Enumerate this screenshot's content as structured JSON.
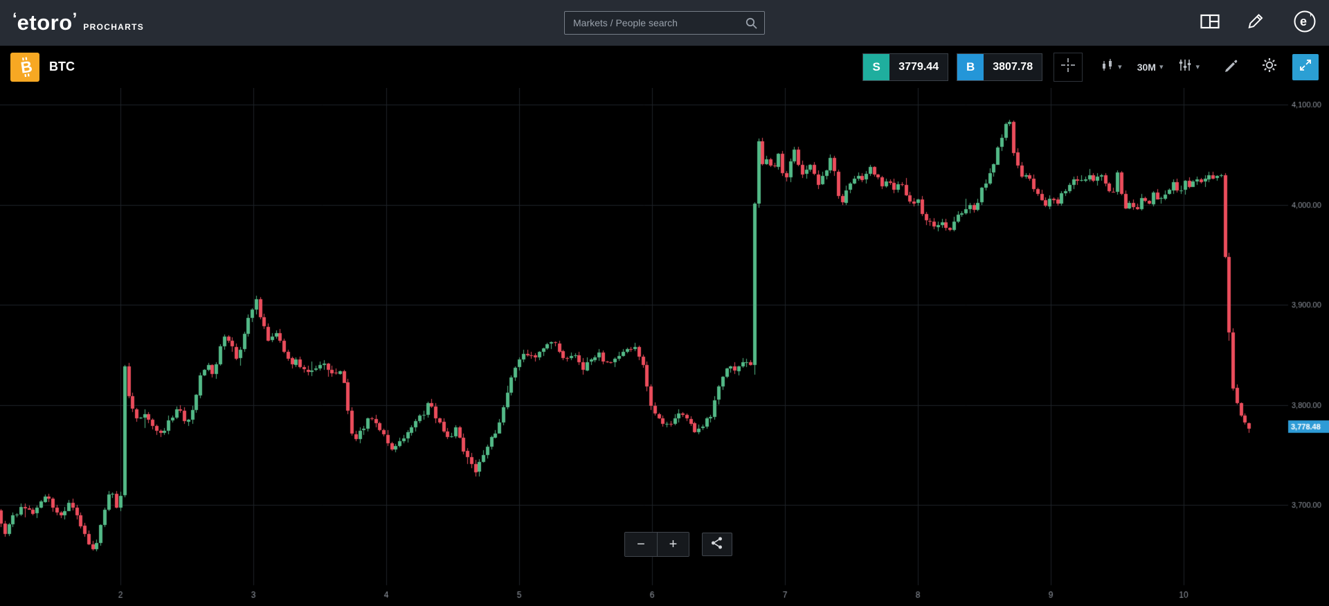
{
  "topbar": {
    "logo_text": "etoro",
    "logo_suffix": "PROCHARTS",
    "search_placeholder": "Markets / People search"
  },
  "toolbar": {
    "instrument": "BTC",
    "sell_label": "S",
    "sell_price": "3779.44",
    "buy_label": "B",
    "buy_price": "3807.78",
    "timeframe": "30M"
  },
  "icons": {
    "caret_down": "▾",
    "btc_glyph": "B",
    "bull_glyph": "e",
    "horn_left": "‘",
    "horn_right": "’"
  },
  "zoom_controls": {
    "minus": "−",
    "plus": "+"
  },
  "colors": {
    "topbar_bg": "#272c34",
    "sell_badge": "#1fae9e",
    "buy_badge": "#2496d8",
    "btc_orange": "#f7a823",
    "active_tool": "#2b9fd4",
    "price_tag": "#2e9bd6"
  },
  "chart_data": {
    "type": "candlestick",
    "symbol": "BTC",
    "timeframe": "30M",
    "title": "BTC 30-minute candlestick chart",
    "x_ticks": [
      "2",
      "3",
      "4",
      "5",
      "6",
      "7",
      "8",
      "9",
      "10"
    ],
    "x_tick_values": [
      2,
      3,
      4,
      5,
      6,
      7,
      8,
      9,
      10
    ],
    "y_ticks": [
      "4,100.00",
      "4,000.00",
      "3,900.00",
      "3,800.00",
      "3,700.00"
    ],
    "y_tick_values": [
      4100,
      4000,
      3900,
      3800,
      3700
    ],
    "y_range": [
      3640,
      4115
    ],
    "grid": true,
    "legend": false,
    "t_start": 1.1,
    "t_end": 10.52,
    "candle_step": 0.03,
    "last_price": 3778.48,
    "last_price_label": "3,778.48",
    "up_color": "#53b987",
    "down_color": "#eb4d5c",
    "tag_color": "#2e9bd6",
    "anchors": [
      [
        1.1,
        3695
      ],
      [
        1.16,
        3672
      ],
      [
        1.22,
        3688
      ],
      [
        1.3,
        3700
      ],
      [
        1.38,
        3692
      ],
      [
        1.45,
        3712
      ],
      [
        1.52,
        3700
      ],
      [
        1.58,
        3688
      ],
      [
        1.64,
        3702
      ],
      [
        1.7,
        3692
      ],
      [
        1.76,
        3672
      ],
      [
        1.83,
        3652
      ],
      [
        1.9,
        3688
      ],
      [
        1.96,
        3718
      ],
      [
        2.0,
        3700
      ],
      [
        2.03,
        3712
      ],
      [
        2.06,
        3840
      ],
      [
        2.1,
        3800
      ],
      [
        2.15,
        3786
      ],
      [
        2.22,
        3792
      ],
      [
        2.28,
        3778
      ],
      [
        2.34,
        3768
      ],
      [
        2.4,
        3786
      ],
      [
        2.47,
        3796
      ],
      [
        2.53,
        3780
      ],
      [
        2.58,
        3798
      ],
      [
        2.62,
        3824
      ],
      [
        2.68,
        3842
      ],
      [
        2.72,
        3830
      ],
      [
        2.77,
        3852
      ],
      [
        2.81,
        3866
      ],
      [
        2.87,
        3858
      ],
      [
        2.91,
        3846
      ],
      [
        2.95,
        3870
      ],
      [
        3.0,
        3888
      ],
      [
        3.05,
        3906
      ],
      [
        3.1,
        3880
      ],
      [
        3.14,
        3862
      ],
      [
        3.2,
        3872
      ],
      [
        3.26,
        3856
      ],
      [
        3.3,
        3840
      ],
      [
        3.36,
        3846
      ],
      [
        3.42,
        3830
      ],
      [
        3.49,
        3838
      ],
      [
        3.55,
        3842
      ],
      [
        3.61,
        3828
      ],
      [
        3.67,
        3836
      ],
      [
        3.72,
        3820
      ],
      [
        3.76,
        3774
      ],
      [
        3.81,
        3768
      ],
      [
        3.87,
        3780
      ],
      [
        3.9,
        3790
      ],
      [
        3.96,
        3778
      ],
      [
        4.02,
        3768
      ],
      [
        4.06,
        3754
      ],
      [
        4.12,
        3760
      ],
      [
        4.19,
        3772
      ],
      [
        4.25,
        3782
      ],
      [
        4.31,
        3792
      ],
      [
        4.35,
        3802
      ],
      [
        4.4,
        3788
      ],
      [
        4.45,
        3776
      ],
      [
        4.5,
        3766
      ],
      [
        4.55,
        3780
      ],
      [
        4.6,
        3756
      ],
      [
        4.66,
        3744
      ],
      [
        4.7,
        3733
      ],
      [
        4.76,
        3752
      ],
      [
        4.8,
        3762
      ],
      [
        4.86,
        3776
      ],
      [
        4.92,
        3800
      ],
      [
        4.98,
        3830
      ],
      [
        5.02,
        3842
      ],
      [
        5.08,
        3852
      ],
      [
        5.14,
        3844
      ],
      [
        5.2,
        3856
      ],
      [
        5.27,
        3862
      ],
      [
        5.32,
        3858
      ],
      [
        5.38,
        3844
      ],
      [
        5.44,
        3850
      ],
      [
        5.5,
        3836
      ],
      [
        5.56,
        3842
      ],
      [
        5.62,
        3852
      ],
      [
        5.68,
        3840
      ],
      [
        5.74,
        3848
      ],
      [
        5.82,
        3854
      ],
      [
        5.9,
        3858
      ],
      [
        5.96,
        3840
      ],
      [
        6.0,
        3812
      ],
      [
        6.04,
        3790
      ],
      [
        6.1,
        3784
      ],
      [
        6.16,
        3778
      ],
      [
        6.22,
        3792
      ],
      [
        6.28,
        3786
      ],
      [
        6.35,
        3774
      ],
      [
        6.42,
        3782
      ],
      [
        6.48,
        3792
      ],
      [
        6.52,
        3812
      ],
      [
        6.56,
        3830
      ],
      [
        6.6,
        3842
      ],
      [
        6.64,
        3832
      ],
      [
        6.7,
        3840
      ],
      [
        6.75,
        3846
      ],
      [
        6.78,
        3840
      ],
      [
        6.81,
        4086
      ],
      [
        6.84,
        4050
      ],
      [
        6.87,
        4040
      ],
      [
        6.9,
        4048
      ],
      [
        6.94,
        4034
      ],
      [
        6.98,
        4052
      ],
      [
        7.02,
        4022
      ],
      [
        7.06,
        4038
      ],
      [
        7.09,
        4058
      ],
      [
        7.13,
        4040
      ],
      [
        7.17,
        4030
      ],
      [
        7.21,
        4042
      ],
      [
        7.25,
        4028
      ],
      [
        7.29,
        4020
      ],
      [
        7.33,
        4034
      ],
      [
        7.37,
        4044
      ],
      [
        7.41,
        4028
      ],
      [
        7.44,
        3998
      ],
      [
        7.48,
        4008
      ],
      [
        7.52,
        4022
      ],
      [
        7.56,
        4030
      ],
      [
        7.61,
        4024
      ],
      [
        7.66,
        4036
      ],
      [
        7.72,
        4030
      ],
      [
        7.76,
        4018
      ],
      [
        7.8,
        4026
      ],
      [
        7.85,
        4014
      ],
      [
        7.9,
        4020
      ],
      [
        7.94,
        4008
      ],
      [
        7.98,
        4000
      ],
      [
        8.02,
        4006
      ],
      [
        8.06,
        3992
      ],
      [
        8.1,
        3984
      ],
      [
        8.16,
        3978
      ],
      [
        8.22,
        3982
      ],
      [
        8.27,
        3974
      ],
      [
        8.32,
        3986
      ],
      [
        8.37,
        3992
      ],
      [
        8.41,
        4002
      ],
      [
        8.45,
        3996
      ],
      [
        8.49,
        4008
      ],
      [
        8.53,
        4020
      ],
      [
        8.58,
        4034
      ],
      [
        8.63,
        4056
      ],
      [
        8.68,
        4074
      ],
      [
        8.71,
        4100
      ],
      [
        8.74,
        4058
      ],
      [
        8.78,
        4038
      ],
      [
        8.82,
        4026
      ],
      [
        8.86,
        4032
      ],
      [
        8.9,
        4014
      ],
      [
        8.95,
        4004
      ],
      [
        9.0,
        3998
      ],
      [
        9.04,
        4010
      ],
      [
        9.08,
        4002
      ],
      [
        9.12,
        4012
      ],
      [
        9.17,
        4022
      ],
      [
        9.21,
        4030
      ],
      [
        9.26,
        4022
      ],
      [
        9.31,
        4032
      ],
      [
        9.36,
        4024
      ],
      [
        9.4,
        4032
      ],
      [
        9.45,
        4020
      ],
      [
        9.49,
        4010
      ],
      [
        9.53,
        4030
      ],
      [
        9.58,
        3996
      ],
      [
        9.63,
        4002
      ],
      [
        9.67,
        3994
      ],
      [
        9.71,
        4006
      ],
      [
        9.76,
        4000
      ],
      [
        9.8,
        4010
      ],
      [
        9.85,
        4002
      ],
      [
        9.9,
        4012
      ],
      [
        9.95,
        4022
      ],
      [
        10.0,
        4014
      ],
      [
        10.04,
        4024
      ],
      [
        10.09,
        4018
      ],
      [
        10.13,
        4028
      ],
      [
        10.18,
        4022
      ],
      [
        10.22,
        4032
      ],
      [
        10.27,
        4026
      ],
      [
        10.31,
        4028
      ],
      [
        10.35,
        3920
      ],
      [
        10.39,
        3822
      ],
      [
        10.43,
        3800
      ],
      [
        10.47,
        3788
      ],
      [
        10.52,
        3778.48
      ]
    ]
  }
}
